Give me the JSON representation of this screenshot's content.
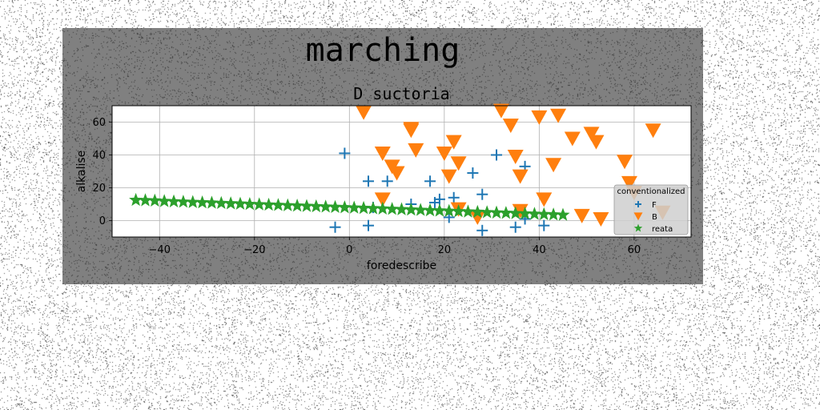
{
  "figure": {
    "suptitle": "marching",
    "background": "#808080"
  },
  "chart_data": {
    "type": "scatter",
    "title": "D suctoria",
    "xlabel": "foredescribe",
    "ylabel": "alkalise",
    "xlim": [
      -50,
      72
    ],
    "ylim": [
      -10,
      70
    ],
    "xticks": [
      -40,
      -20,
      0,
      20,
      40,
      60
    ],
    "yticks": [
      0,
      20,
      40,
      60
    ],
    "grid": true,
    "legend": {
      "title": "conventionalized",
      "placement": "lower-right"
    },
    "series": [
      {
        "name": "F",
        "marker": "plus",
        "color": "#1f77b4",
        "x": [
          -3,
          -1,
          4,
          4,
          5,
          8,
          13,
          17,
          18,
          19,
          21,
          22,
          26,
          28,
          28,
          31,
          35,
          37,
          37,
          41
        ],
        "y": [
          -4,
          41,
          -3,
          24,
          8,
          24,
          10,
          24,
          11,
          13,
          2,
          14,
          29,
          16,
          -6,
          40,
          -4,
          33,
          1,
          -3
        ]
      },
      {
        "name": "B",
        "marker": "triangle-down",
        "color": "#ff7f0e",
        "x": [
          3,
          7,
          7,
          9,
          10,
          13,
          13,
          14,
          20,
          21,
          22,
          23,
          23,
          27,
          32,
          34,
          35,
          36,
          36,
          40,
          41,
          43,
          44,
          47,
          49,
          51,
          52,
          53,
          58,
          59,
          60,
          64,
          66
        ],
        "y": [
          66,
          41,
          13,
          33,
          29,
          56,
          55,
          43,
          41,
          27,
          48,
          35,
          7,
          2,
          67,
          58,
          39,
          27,
          6,
          63,
          13,
          34,
          64,
          50,
          3,
          53,
          48,
          1,
          36,
          23,
          17,
          55,
          5
        ]
      },
      {
        "name": "reata",
        "marker": "star",
        "color": "#2ca02c",
        "x": [
          -45,
          -43,
          -41,
          -39,
          -37,
          -35,
          -33,
          -31,
          -29,
          -27,
          -25,
          -23,
          -21,
          -19,
          -17,
          -15,
          -13,
          -11,
          -9,
          -7,
          -5,
          -3,
          -1,
          1,
          3,
          5,
          7,
          9,
          11,
          13,
          15,
          17,
          19,
          21,
          23,
          25,
          27,
          29,
          31,
          33,
          35,
          37,
          39,
          41,
          43,
          45
        ],
        "y": [
          12.5,
          12.3,
          12.1,
          11.8,
          11.6,
          11.4,
          11.2,
          11.0,
          10.8,
          10.6,
          10.4,
          10.2,
          10.0,
          9.8,
          9.6,
          9.4,
          9.2,
          9.0,
          8.8,
          8.6,
          8.4,
          8.2,
          8.0,
          7.8,
          7.6,
          7.4,
          7.2,
          7.0,
          6.8,
          6.6,
          6.4,
          6.2,
          6.0,
          5.8,
          5.6,
          5.4,
          5.2,
          5.0,
          4.8,
          4.6,
          4.4,
          4.2,
          4.0,
          3.8,
          3.6,
          3.4
        ]
      }
    ]
  }
}
